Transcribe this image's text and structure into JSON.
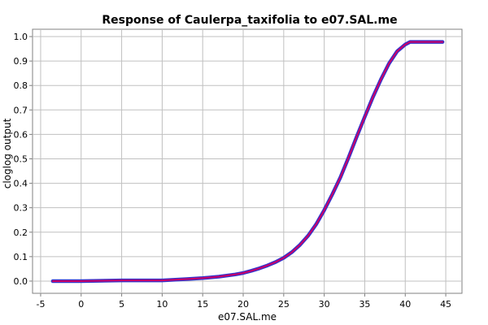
{
  "chart_data": {
    "type": "line",
    "title": "Response of Caulerpa_taxifolia to e07.SAL.me",
    "xlabel": "e07.SAL.me",
    "ylabel": "cloglog output",
    "xlim": [
      -6,
      47
    ],
    "ylim": [
      -0.05,
      1.03
    ],
    "xticks": [
      -5,
      0,
      5,
      10,
      15,
      20,
      25,
      30,
      35,
      40,
      45
    ],
    "yticks": [
      0.0,
      0.1,
      0.2,
      0.3,
      0.4,
      0.5,
      0.6,
      0.7,
      0.8,
      0.9,
      1.0
    ],
    "xtick_labels": [
      "-5",
      "0",
      "5",
      "10",
      "15",
      "20",
      "25",
      "30",
      "35",
      "40",
      "45"
    ],
    "ytick_labels": [
      "0.0",
      "0.1",
      "0.2",
      "0.3",
      "0.4",
      "0.5",
      "0.6",
      "0.7",
      "0.8",
      "0.9",
      "1.0"
    ],
    "grid": true,
    "series": [
      {
        "color": "#cc0066",
        "band_color": "#3333cc",
        "x": [
          -3.5,
          0,
          5,
          10,
          13,
          15,
          17,
          19,
          20,
          21,
          22,
          23,
          24,
          25,
          26,
          27,
          28,
          29,
          30,
          31,
          32,
          33,
          34,
          35,
          36,
          37,
          38,
          39,
          40,
          40.6,
          41,
          43,
          44.6
        ],
        "y": [
          0.0,
          0.0,
          0.003,
          0.003,
          0.008,
          0.012,
          0.018,
          0.027,
          0.033,
          0.042,
          0.052,
          0.064,
          0.078,
          0.095,
          0.118,
          0.148,
          0.185,
          0.232,
          0.29,
          0.355,
          0.425,
          0.505,
          0.59,
          0.672,
          0.752,
          0.825,
          0.89,
          0.94,
          0.968,
          0.978,
          0.978,
          0.978,
          0.978
        ]
      }
    ]
  }
}
